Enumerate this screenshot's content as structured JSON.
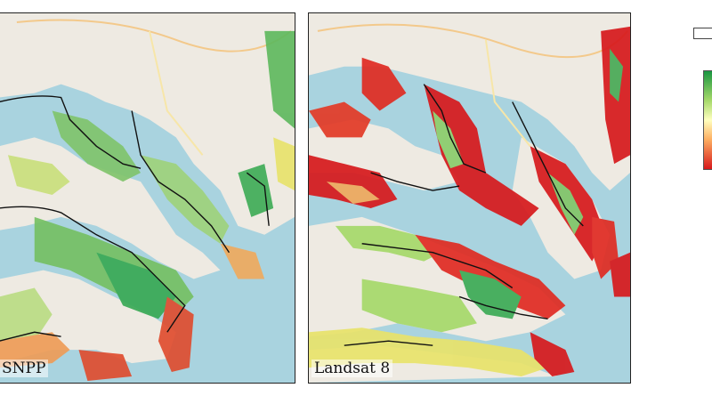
{
  "panels": [
    {
      "id": "left",
      "label": "SNPP"
    },
    {
      "id": "right",
      "label": "Landsat 8"
    }
  ],
  "legend": {
    "nodata_color": "#ffffff",
    "ramp_colors": [
      "#1a9641",
      "#a6d96a",
      "#ffffbf",
      "#fdae61",
      "#d7191c"
    ]
  },
  "colors": {
    "water": "#a9d3df",
    "land": "#eeeae2",
    "coast_outline": "#111111"
  }
}
